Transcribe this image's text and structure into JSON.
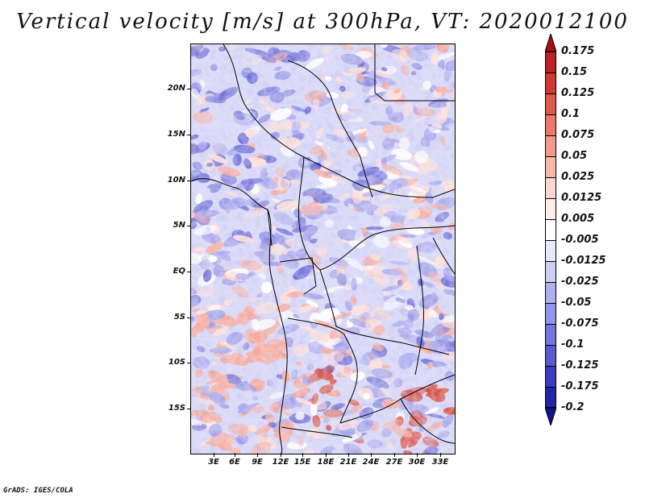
{
  "title": "Vertical velocity [m/s] at 300hPa, VT: 2020012100",
  "credit": "GrADS: IGES/COLA",
  "axes": {
    "lat_labels": [
      "20N",
      "15N",
      "10N",
      "5N",
      "EQ",
      "5S",
      "10S",
      "15S"
    ],
    "lon_labels": [
      "3E",
      "6E",
      "9E",
      "12E",
      "15E",
      "18E",
      "21E",
      "24E",
      "27E",
      "30E",
      "33E"
    ]
  },
  "colorbar": {
    "labels": [
      "0.175",
      "0.15",
      "0.125",
      "0.1",
      "0.075",
      "0.05",
      "0.025",
      "0.0125",
      "0.005",
      "-0.005",
      "-0.0125",
      "-0.025",
      "-0.05",
      "-0.075",
      "-0.1",
      "-0.125",
      "-0.175",
      "-0.2"
    ],
    "colors": [
      "#a50f15",
      "#bd1f22",
      "#cf3a30",
      "#df5a4a",
      "#ec7a68",
      "#f39a8c",
      "#f8b8ae",
      "#fcd6d0",
      "#fdeeec",
      "#ffffff",
      "#e8e8fb",
      "#ccccf5",
      "#b0b0ef",
      "#9494e8",
      "#7676de",
      "#5a5ad2",
      "#3c3cc0",
      "#2424a8",
      "#14148a"
    ]
  },
  "field_colors": {
    "strong_down": "#cf3a30",
    "down": "#f39a8c",
    "weak_down": "#fcd6d0",
    "neutral": "#ffffff",
    "weak_up": "#ccccf5",
    "up": "#9494e8",
    "strong_up": "#5a5ad2",
    "borders": "#000000"
  }
}
